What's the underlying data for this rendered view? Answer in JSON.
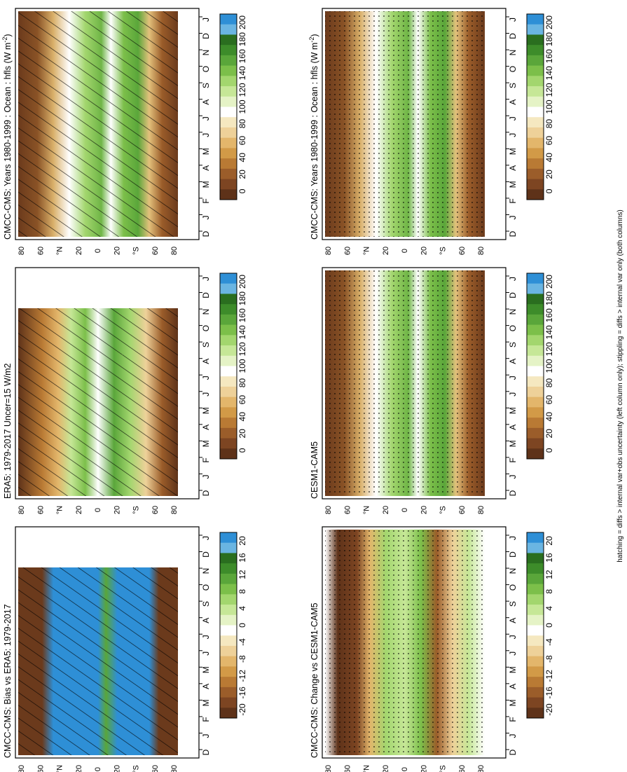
{
  "figure": {
    "footnote": "hatching = diffs > internal var+obs uncertainty (left column only); stippling = diffs > internal var only (both columns)"
  },
  "colorbars": {
    "absolute": {
      "ticks": [
        "200",
        "180",
        "160",
        "140",
        "120",
        "100",
        "80",
        "60",
        "40",
        "20",
        "0"
      ],
      "colors": [
        "#2e8fd6",
        "#6ab5e2",
        "#2a6e1f",
        "#3d8c2a",
        "#5aa63a",
        "#7cbf4a",
        "#a3d66e",
        "#c6e797",
        "#e5f3c6",
        "#ffffff",
        "#f5e8c0",
        "#eed199",
        "#e3b66b",
        "#d29a47",
        "#b97a34",
        "#9b5d2a",
        "#7d4522",
        "#5e3219"
      ]
    },
    "difference": {
      "ticks": [
        "20",
        "16",
        "12",
        "8",
        "4",
        "0",
        "-4",
        "-8",
        "-12",
        "-16",
        "-20"
      ],
      "colors": [
        "#2e8fd6",
        "#6ab5e2",
        "#2a6e1f",
        "#3d8c2a",
        "#5aa63a",
        "#7cbf4a",
        "#a3d66e",
        "#c6e797",
        "#e5f3c6",
        "#ffffff",
        "#f5e8c0",
        "#eed199",
        "#e3b66b",
        "#d29a47",
        "#b97a34",
        "#9b5d2a",
        "#7d4522",
        "#5e3219"
      ]
    }
  },
  "axes": {
    "months": [
      "D",
      "J",
      "F",
      "M",
      "A",
      "M",
      "J",
      "J",
      "A",
      "S",
      "O",
      "N",
      "D",
      "J"
    ],
    "lat_labels": [
      "80",
      "60",
      "°N",
      "20",
      "0",
      "20",
      "°S",
      "60",
      "80"
    ]
  },
  "chart_data": [
    {
      "type": "heatmap",
      "panel": "top-left",
      "title": "CMCC-CMS: Years 1980-1999 : Ocean : hfls (W m",
      "title_sup": "-2",
      "title_end": ")",
      "colorbar": "absolute",
      "hatching": true,
      "stippling": false
    },
    {
      "type": "heatmap",
      "panel": "top-right",
      "title": "CMCC-CMS: Years 1980-1999 : Ocean : hfls (W m",
      "title_sup": "-2",
      "title_end": ")",
      "colorbar": "absolute",
      "hatching": false,
      "stippling": true
    },
    {
      "type": "heatmap",
      "panel": "middle-left",
      "title": "ERA5: 1979-2017 Uncer=15 W/m2",
      "colorbar": "absolute",
      "hatching": true,
      "stippling": false
    },
    {
      "type": "heatmap",
      "panel": "middle-right",
      "title": "CESM1-CAM5",
      "colorbar": "absolute",
      "hatching": false,
      "stippling": true
    },
    {
      "type": "heatmap",
      "panel": "bottom-left",
      "title": "CMCC-CMS: Bias vs ERA5: 1979-2017",
      "colorbar": "difference",
      "hatching": true,
      "stippling": false
    },
    {
      "type": "heatmap",
      "panel": "bottom-right",
      "title": "CMCC-CMS: Change vs CESM1-CAM5",
      "colorbar": "difference",
      "hatching": false,
      "stippling": true
    }
  ]
}
